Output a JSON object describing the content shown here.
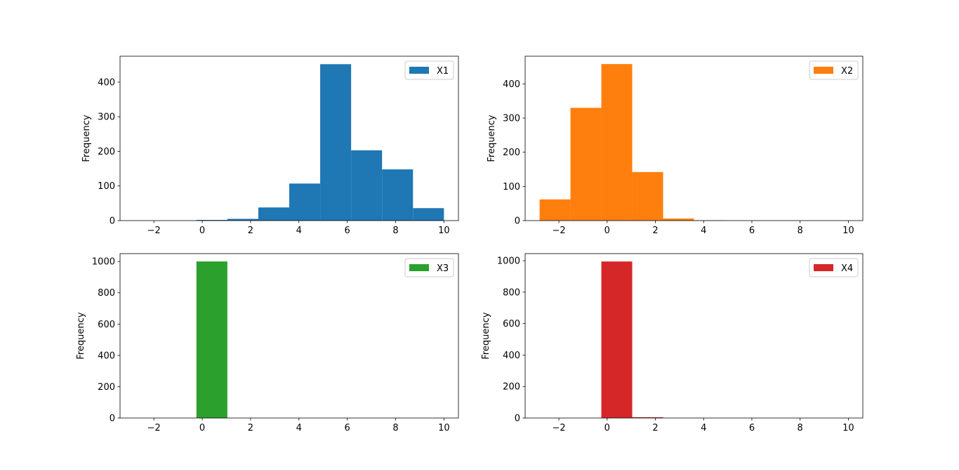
{
  "chart_data": [
    {
      "type": "bar",
      "name": "X1",
      "color": "#1f77b4",
      "bin_edges": [
        -2.8,
        -1.52,
        -0.24,
        1.04,
        2.32,
        3.6,
        4.88,
        6.16,
        7.44,
        8.72,
        10.0
      ],
      "values": [
        0,
        0,
        2,
        5,
        38,
        107,
        452,
        203,
        148,
        36
      ],
      "xlim": [
        -3.4,
        10.6
      ],
      "ylim": [
        0,
        475
      ],
      "xticks": [
        -2,
        0,
        2,
        4,
        6,
        8,
        10
      ],
      "xtick_labels": [
        "−2",
        "0",
        "2",
        "4",
        "6",
        "8",
        "10"
      ],
      "yticks": [
        0,
        100,
        200,
        300,
        400
      ],
      "ylabel": "Frequency",
      "legend": [
        "X1"
      ],
      "legend_position": "top-right",
      "grid": false
    },
    {
      "type": "bar",
      "name": "X2",
      "color": "#ff7f0e",
      "bin_edges": [
        -2.8,
        -1.52,
        -0.24,
        1.04,
        2.32,
        3.6,
        4.88,
        6.16,
        7.44,
        8.72,
        10.0
      ],
      "values": [
        62,
        330,
        458,
        142,
        6,
        1,
        0,
        0,
        0,
        0
      ],
      "xlim": [
        -3.4,
        10.6
      ],
      "ylim": [
        0,
        481
      ],
      "xticks": [
        -2,
        0,
        2,
        4,
        6,
        8,
        10
      ],
      "xtick_labels": [
        "−2",
        "0",
        "2",
        "4",
        "6",
        "8",
        "10"
      ],
      "yticks": [
        0,
        100,
        200,
        300,
        400
      ],
      "ylabel": "Frequency",
      "legend": [
        "X2"
      ],
      "legend_position": "top-right",
      "grid": false
    },
    {
      "type": "bar",
      "name": "X3",
      "color": "#2ca02c",
      "bin_edges": [
        -2.8,
        -1.52,
        -0.24,
        1.04,
        2.32,
        3.6,
        4.88,
        6.16,
        7.44,
        8.72,
        10.0
      ],
      "values": [
        0,
        0,
        1000,
        0,
        0,
        0,
        0,
        0,
        0,
        0
      ],
      "xlim": [
        -3.4,
        10.6
      ],
      "ylim": [
        0,
        1050
      ],
      "xticks": [
        -2,
        0,
        2,
        4,
        6,
        8,
        10
      ],
      "xtick_labels": [
        "−2",
        "0",
        "2",
        "4",
        "6",
        "8",
        "10"
      ],
      "yticks": [
        0,
        200,
        400,
        600,
        800,
        1000
      ],
      "ylabel": "Frequency",
      "legend": [
        "X3"
      ],
      "legend_position": "top-right",
      "grid": false
    },
    {
      "type": "bar",
      "name": "X4",
      "color": "#d62728",
      "bin_edges": [
        -2.8,
        -1.52,
        -0.24,
        1.04,
        2.32,
        3.6,
        4.88,
        6.16,
        7.44,
        8.72,
        10.0
      ],
      "values": [
        0,
        0,
        995,
        5,
        0,
        0,
        0,
        0,
        0,
        0
      ],
      "xlim": [
        -3.4,
        10.6
      ],
      "ylim": [
        0,
        1045
      ],
      "xticks": [
        -2,
        0,
        2,
        4,
        6,
        8,
        10
      ],
      "xtick_labels": [
        "−2",
        "0",
        "2",
        "4",
        "6",
        "8",
        "10"
      ],
      "yticks": [
        0,
        200,
        400,
        600,
        800,
        1000
      ],
      "ylabel": "Frequency",
      "legend": [
        "X4"
      ],
      "legend_position": "top-right",
      "grid": false
    }
  ]
}
